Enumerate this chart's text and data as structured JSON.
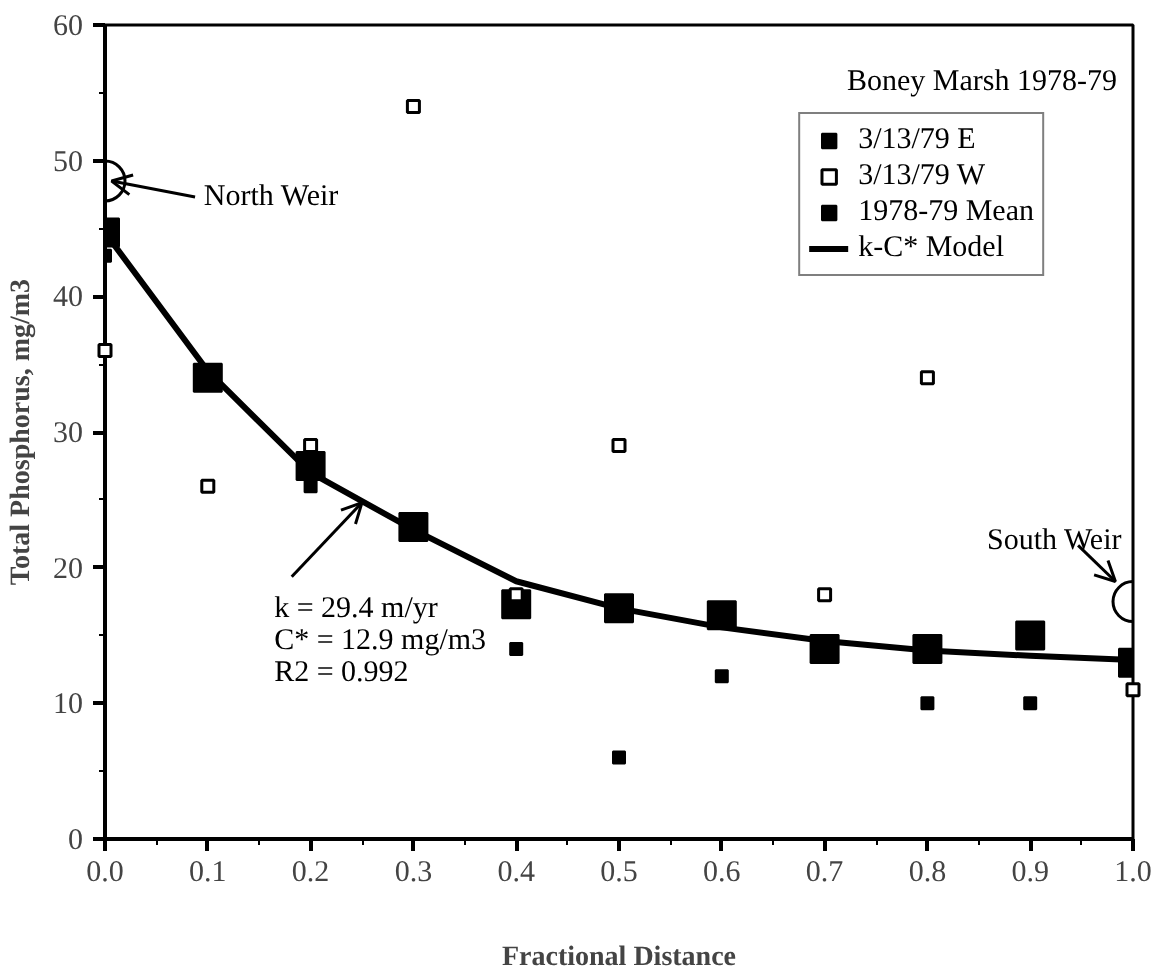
{
  "chart_data": {
    "type": "scatter",
    "xlabel": "Fractional Distance",
    "ylabel": "Total Phosphorus, mg/m3",
    "legend_title": "Boney Marsh 1978-79",
    "xlim": [
      0,
      1
    ],
    "xticks": [
      {
        "value": 0,
        "label": "0.0"
      },
      0.1,
      0.2,
      0.3,
      0.4,
      0.5,
      0.6,
      0.7,
      0.8,
      0.9,
      {
        "value": 1,
        "label": "1.0"
      }
    ],
    "ylim": [
      0,
      60
    ],
    "yticks": [
      0,
      10,
      20,
      30,
      40,
      50,
      60
    ],
    "grid": false,
    "legend": "top right",
    "series": [
      {
        "name": "3/13/79 E",
        "color": "#000000",
        "marker": "square",
        "x": [
          0,
          0.2,
          0.4,
          0.5,
          0.6,
          0.8,
          0.9
        ],
        "values": [
          43,
          26,
          14,
          6,
          12,
          10,
          10
        ]
      },
      {
        "name": "3/13/79 W",
        "color": "#ffffff",
        "marker": "square",
        "x": [
          0,
          0.1,
          0.2,
          0.3,
          0.4,
          0.5,
          0.7,
          0.8,
          1.0
        ],
        "values": [
          36,
          26,
          29,
          54,
          18,
          29,
          18,
          34,
          11
        ]
      },
      {
        "name": "1978-79 Mean",
        "color": "#000000",
        "marker": "square",
        "x": [
          0,
          0.1,
          0.2,
          0.3,
          0.4,
          0.5,
          0.6,
          0.7,
          0.8,
          0.9,
          1.0
        ],
        "values": [
          44.7,
          34,
          27.5,
          23,
          17.3,
          17,
          16.5,
          14,
          14,
          15,
          13
        ]
      },
      {
        "name": "k-C* Model",
        "type": "line",
        "color": "#000000",
        "marker": "none",
        "x": [
          0,
          0.1,
          0.2,
          0.3,
          0.4,
          0.5,
          0.6,
          0.7,
          0.8,
          0.9,
          1.0
        ],
        "values": [
          44.7,
          34.5,
          27,
          22.8,
          19,
          17,
          15.6,
          14.6,
          13.9,
          13.5,
          13.2
        ]
      }
    ],
    "annotations": [
      {
        "text": "North Weir",
        "x": 0,
        "y": 48.5
      },
      {
        "text": "South Weir",
        "x": 1,
        "y": 17.5
      },
      {
        "text": "k = 29.4 m/yr\nC* = 12.9 mg/m3\nR2 = 0.992",
        "x": 0.25,
        "y": 24.8
      }
    ]
  }
}
